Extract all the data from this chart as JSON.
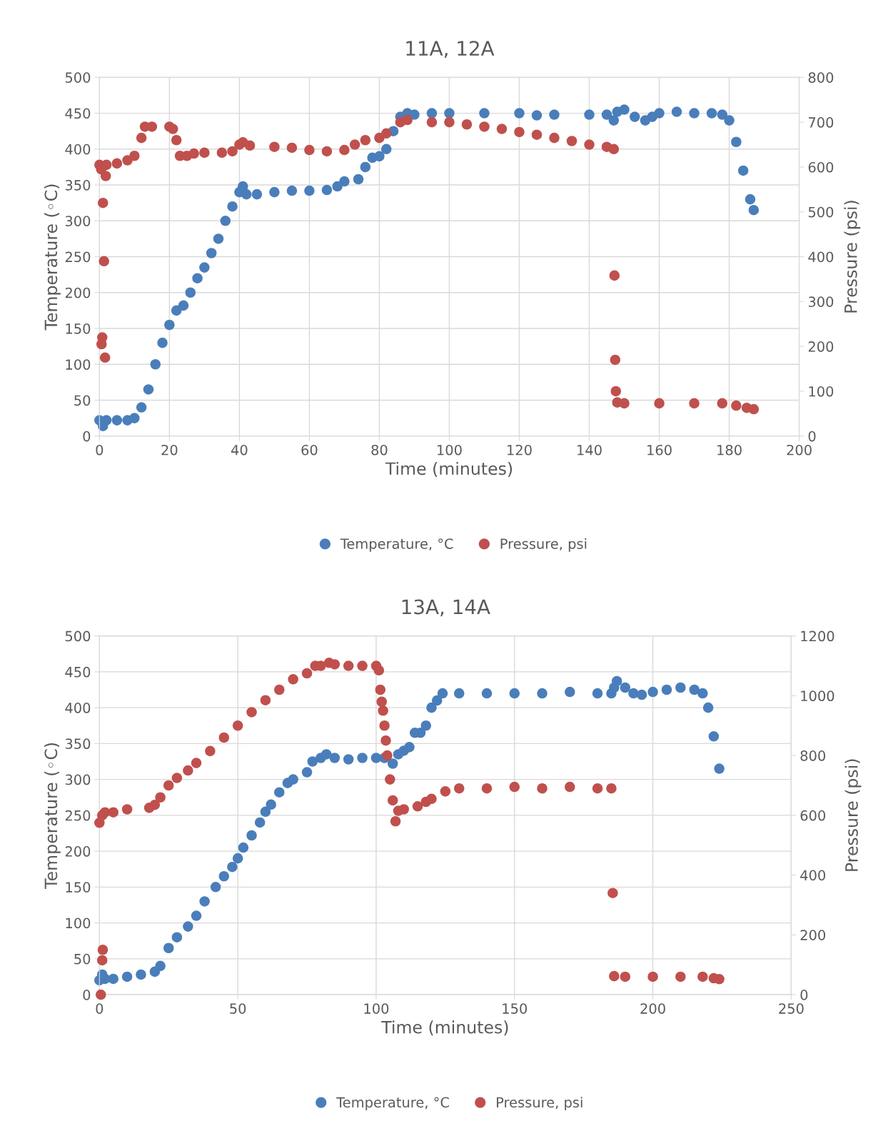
{
  "chart_data": [
    {
      "type": "scatter",
      "title": "11A, 12A",
      "xlabel": "Time (minutes)",
      "ylabel": "Temperature (◦C)",
      "y2label": "Pressure (psi)",
      "xlim": [
        0,
        200
      ],
      "xticks": [
        0,
        20,
        40,
        60,
        80,
        100,
        120,
        140,
        160,
        180,
        200
      ],
      "ylim": [
        0,
        500
      ],
      "yticks": [
        0,
        50,
        100,
        150,
        200,
        250,
        300,
        350,
        400,
        450,
        500
      ],
      "y2lim": [
        0,
        800
      ],
      "y2ticks": [
        0,
        100,
        200,
        300,
        400,
        500,
        600,
        700,
        800
      ],
      "grid": true,
      "legend": "bottom",
      "marker": "circle",
      "series": [
        {
          "name": "Temperature, °C",
          "color": "#4a7ebb",
          "x": [
            0,
            1,
            2,
            5,
            8,
            10,
            12,
            14,
            16,
            18,
            20,
            22,
            24,
            26,
            28,
            30,
            32,
            34,
            36,
            38,
            40,
            41,
            42,
            45,
            50,
            55,
            60,
            65,
            68,
            70,
            74,
            76,
            78,
            80,
            82,
            84,
            86,
            88,
            90,
            95,
            100,
            110,
            120,
            125,
            130,
            140,
            145,
            147,
            148,
            150,
            153,
            156,
            158,
            160,
            165,
            170,
            175,
            178,
            180,
            182,
            184,
            186,
            187
          ],
          "values": [
            22,
            14,
            22,
            22,
            22,
            25,
            40,
            65,
            100,
            130,
            155,
            175,
            182,
            200,
            220,
            235,
            255,
            275,
            300,
            320,
            340,
            348,
            337,
            337,
            340,
            342,
            342,
            343,
            348,
            355,
            358,
            375,
            388,
            390,
            400,
            425,
            445,
            450,
            448,
            450,
            450,
            450,
            450,
            447,
            448,
            448,
            448,
            440,
            452,
            455,
            445,
            440,
            445,
            450,
            452,
            450,
            450,
            448,
            440,
            410,
            370,
            330,
            315
          ]
        },
        {
          "name": "Pressure, psi",
          "color": "#c0504d",
          "axis": "y2",
          "x": [
            0,
            0.5,
            1,
            1.3,
            0.8,
            0.6,
            1.6,
            1.8,
            2,
            5,
            8,
            10,
            12,
            13,
            15,
            20,
            21,
            22,
            23,
            25,
            27,
            30,
            35,
            38,
            40,
            41,
            43,
            50,
            55,
            60,
            65,
            70,
            73,
            76,
            80,
            82,
            86,
            88,
            95,
            100,
            105,
            110,
            115,
            120,
            125,
            130,
            135,
            140,
            145,
            147,
            147.2,
            147.4,
            147.6,
            148,
            150,
            160,
            170,
            178,
            182,
            185,
            187
          ],
          "values": [
            605,
            595,
            520,
            390,
            220,
            205,
            175,
            580,
            605,
            608,
            615,
            625,
            665,
            690,
            690,
            690,
            685,
            660,
            625,
            625,
            630,
            632,
            632,
            635,
            650,
            655,
            648,
            645,
            643,
            638,
            635,
            638,
            650,
            660,
            665,
            675,
            700,
            705,
            700,
            700,
            695,
            690,
            685,
            678,
            672,
            665,
            658,
            650,
            645,
            640,
            358,
            170,
            100,
            75,
            73,
            73,
            73,
            73,
            68,
            63,
            60
          ]
        }
      ]
    },
    {
      "type": "scatter",
      "title": "13A, 14A",
      "xlabel": "Time (minutes)",
      "ylabel": "Temperature (◦C)",
      "y2label": "Pressure (psi)",
      "xlim": [
        0,
        250
      ],
      "xticks": [
        0,
        50,
        100,
        150,
        200,
        250
      ],
      "ylim": [
        0,
        500
      ],
      "yticks": [
        0,
        50,
        100,
        150,
        200,
        250,
        300,
        350,
        400,
        450,
        500
      ],
      "y2lim": [
        0,
        1200
      ],
      "y2ticks": [
        0,
        200,
        400,
        600,
        800,
        1000,
        1200
      ],
      "grid": true,
      "legend": "bottom",
      "marker": "circle",
      "series": [
        {
          "name": "Temperature, °C",
          "color": "#4a7ebb",
          "x": [
            0,
            1,
            2,
            5,
            10,
            15,
            20,
            22,
            25,
            28,
            32,
            35,
            38,
            42,
            45,
            48,
            50,
            52,
            55,
            58,
            60,
            62,
            65,
            68,
            70,
            75,
            77,
            80,
            82,
            85,
            90,
            95,
            100,
            103,
            106,
            108,
            110,
            112,
            114,
            116,
            118,
            120,
            122,
            124,
            130,
            140,
            150,
            160,
            170,
            180,
            185,
            186,
            187,
            190,
            193,
            196,
            200,
            205,
            210,
            215,
            218,
            220,
            222,
            224
          ],
          "values": [
            20,
            28,
            22,
            22,
            25,
            28,
            32,
            40,
            65,
            80,
            95,
            110,
            130,
            150,
            165,
            178,
            190,
            205,
            222,
            240,
            255,
            265,
            282,
            295,
            300,
            310,
            325,
            330,
            335,
            330,
            328,
            330,
            330,
            330,
            322,
            335,
            340,
            345,
            365,
            365,
            375,
            400,
            410,
            420,
            420,
            420,
            420,
            420,
            422,
            420,
            420,
            428,
            437,
            428,
            420,
            418,
            422,
            425,
            428,
            425,
            420,
            400,
            360,
            315
          ]
        },
        {
          "name": "Pressure, psi",
          "color": "#c0504d",
          "axis": "y2",
          "x": [
            0,
            0.5,
            1,
            1.2,
            1,
            2,
            5,
            10,
            18,
            20,
            22,
            25,
            28,
            32,
            35,
            40,
            45,
            50,
            55,
            60,
            65,
            70,
            75,
            78,
            80,
            83,
            85,
            90,
            95,
            100,
            101,
            101.5,
            102,
            102.5,
            103,
            103.5,
            104,
            105,
            106,
            107,
            108,
            110,
            115,
            118,
            120,
            125,
            130,
            140,
            150,
            160,
            170,
            180,
            185,
            185.5,
            186,
            190,
            200,
            210,
            218,
            222,
            224
          ],
          "values": [
            575,
            0,
            115,
            150,
            600,
            610,
            610,
            620,
            625,
            635,
            660,
            700,
            725,
            750,
            775,
            815,
            860,
            900,
            945,
            985,
            1020,
            1055,
            1075,
            1100,
            1100,
            1110,
            1105,
            1100,
            1100,
            1100,
            1085,
            1020,
            980,
            950,
            900,
            850,
            800,
            720,
            650,
            580,
            615,
            620,
            630,
            645,
            655,
            680,
            690,
            690,
            695,
            690,
            695,
            690,
            690,
            340,
            62,
            60,
            60,
            60,
            60,
            55,
            52
          ]
        }
      ]
    }
  ]
}
